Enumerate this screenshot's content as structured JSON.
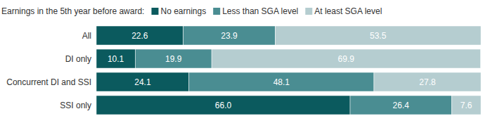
{
  "chart_data": {
    "type": "bar",
    "orientation": "horizontal",
    "stacked": true,
    "data_labels": true,
    "legend": "top",
    "tick_labels": "y",
    "title": "Earnings in the 5th year before award:",
    "categories": [
      "All",
      "DI only",
      "Concurrent DI and SSI",
      "SSI only"
    ],
    "xlim": [
      0,
      100
    ],
    "series": [
      {
        "name": "No earnings",
        "color": "#0b5a5e",
        "values": [
          22.6,
          10.1,
          24.1,
          66.0
        ],
        "value_labels": [
          "22.6",
          "10.1",
          "24.1",
          "66.0"
        ]
      },
      {
        "name": "Less than SGA level",
        "color": "#4a8d92",
        "values": [
          23.9,
          19.9,
          48.1,
          26.4
        ],
        "value_labels": [
          "23.9",
          "19.9",
          "48.1",
          "26.4"
        ]
      },
      {
        "name": "At least SGA level",
        "color": "#b5cdd0",
        "values": [
          53.5,
          69.9,
          27.8,
          7.6
        ],
        "value_labels": [
          "53.5",
          "69.9",
          "27.8",
          "7.6"
        ]
      }
    ]
  }
}
